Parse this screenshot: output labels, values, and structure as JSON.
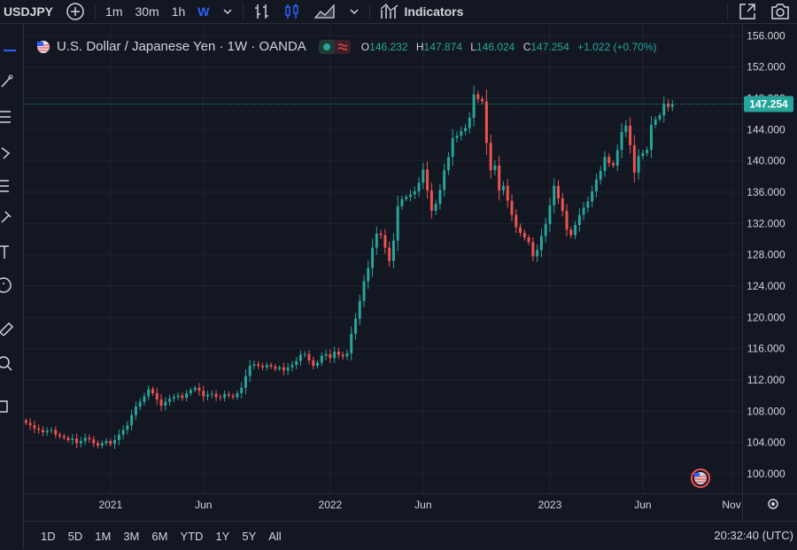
{
  "toolbar": {
    "symbol": "USDJPY",
    "intervals": [
      "1m",
      "30m",
      "1h",
      "W"
    ],
    "active_interval": "W",
    "indicators_label": "Indicators"
  },
  "legend": {
    "title": "U.S. Dollar / Japanese Yen · 1W · OANDA",
    "open_label": "O",
    "open": "146.232",
    "high_label": "H",
    "high": "147.874",
    "low_label": "L",
    "low": "146.024",
    "close_label": "C",
    "close": "147.254",
    "change": "+1.022 (+0.70%)"
  },
  "price_badge": "147.254",
  "ranges": [
    "1D",
    "5D",
    "1M",
    "3M",
    "6M",
    "YTD",
    "1Y",
    "5Y",
    "All"
  ],
  "clock": "20:32:40 (UTC)",
  "colors": {
    "up": "#26a69a",
    "down": "#ef5350",
    "bg": "#131722",
    "accent": "#2962ff"
  },
  "chart_data": {
    "type": "candlestick",
    "y_ticks": [
      "100.000",
      "104.000",
      "108.000",
      "112.000",
      "116.000",
      "120.000",
      "124.000",
      "128.000",
      "132.000",
      "136.000",
      "140.000",
      "144.000",
      "148.000",
      "152.000",
      "156.000"
    ],
    "y_range": [
      97.5,
      157.5
    ],
    "x_ticks": [
      {
        "label": "2021",
        "week": 20
      },
      {
        "label": "Jun",
        "week": 42
      },
      {
        "label": "2022",
        "week": 72
      },
      {
        "label": "Jun",
        "week": 94
      },
      {
        "label": "2023",
        "week": 124
      },
      {
        "label": "Jun",
        "week": 146
      },
      {
        "label": "Nov",
        "week": 167
      }
    ],
    "x_range": [
      -0.5,
      169.5
    ],
    "closes": [
      106.5,
      106.2,
      105.8,
      105.6,
      105.3,
      105.5,
      105.6,
      105.0,
      104.8,
      104.6,
      104.3,
      104.5,
      103.9,
      104.2,
      104.6,
      104.4,
      103.9,
      103.6,
      103.9,
      104.2,
      103.8,
      104.3,
      105.0,
      105.6,
      106.2,
      107.5,
      108.6,
      109.2,
      109.9,
      110.8,
      110.3,
      109.5,
      108.7,
      109.2,
      109.6,
      109.8,
      110.0,
      109.7,
      110.3,
      110.7,
      111.0,
      110.6,
      109.9,
      110.1,
      110.2,
      109.8,
      109.7,
      110.2,
      110.0,
      109.8,
      110.3,
      111.0,
      112.5,
      113.8,
      114.0,
      113.8,
      113.6,
      113.9,
      113.7,
      113.4,
      113.6,
      113.2,
      113.6,
      113.9,
      114.4,
      115.2,
      115.3,
      114.5,
      113.8,
      114.2,
      115.1,
      115.3,
      114.8,
      115.6,
      115.2,
      115.0,
      115.4,
      117.9,
      119.8,
      122.1,
      124.6,
      126.3,
      128.9,
      130.7,
      130.5,
      128.9,
      127.2,
      129.8,
      134.2,
      135.1,
      135.4,
      135.7,
      136.1,
      137.2,
      138.9,
      136.2,
      133.6,
      134.5,
      136.3,
      138.8,
      140.5,
      142.9,
      143.2,
      143.8,
      144.2,
      145.5,
      148.5,
      147.9,
      147.6,
      142.3,
      138.8,
      139.4,
      136.2,
      136.8,
      134.9,
      133.1,
      131.5,
      130.8,
      130.2,
      129.6,
      127.8,
      128.6,
      130.4,
      131.9,
      134.3,
      136.8,
      135.2,
      133.6,
      131.2,
      130.5,
      131.8,
      133.1,
      134.0,
      134.8,
      136.1,
      137.6,
      138.7,
      140.5,
      139.7,
      139.4,
      141.4,
      143.7,
      144.5,
      142.0,
      138.5,
      140.6,
      141.0,
      141.4,
      144.6,
      145.3,
      145.8,
      147.3,
      146.9,
      147.25
    ],
    "last_price": 147.254
  }
}
